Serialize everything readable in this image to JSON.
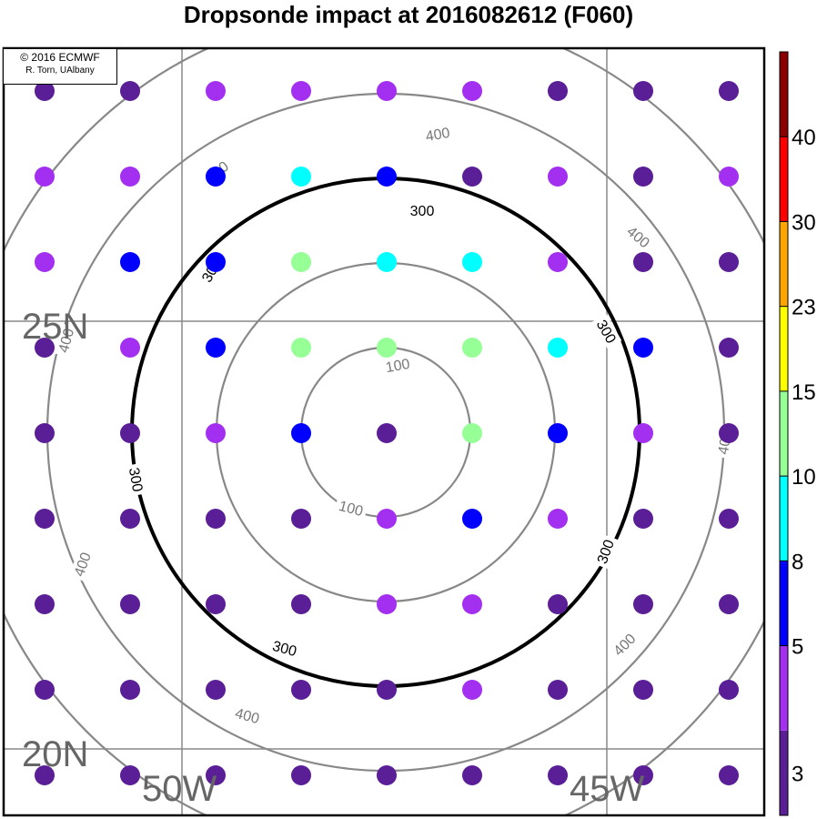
{
  "title": "Dropsonde impact at 2016082612 (F060)",
  "credit": {
    "line1": "© 2016 ECMWF",
    "line2": "R. Torn, UAlbany"
  },
  "chart_data": {
    "type": "scatter",
    "map_labels": {
      "lat": [
        "25N",
        "20N"
      ],
      "lon": [
        "50W",
        "45W"
      ]
    },
    "contours": [
      {
        "level": 100,
        "label": "100",
        "color": "#888888",
        "width": 2.2,
        "labels": [
          [
            437,
            401,
            -10
          ],
          [
            386,
            558,
            15
          ]
        ]
      },
      {
        "level": 200,
        "label": "",
        "color": "#888888",
        "width": 2.2,
        "labels": []
      },
      {
        "level": 300,
        "label": "300",
        "color": "#000000",
        "width": 4,
        "labels": [
          [
            464,
            231,
            0
          ],
          [
            232,
            297,
            -60
          ],
          [
            667,
            364,
            60
          ],
          [
            150,
            527,
            80
          ],
          [
            665,
            606,
            -70
          ],
          [
            313,
            712,
            15
          ]
        ]
      },
      {
        "level": 400,
        "label": "400",
        "color": "#888888",
        "width": 2.2,
        "labels": [
          [
            481,
            147,
            -10
          ],
          [
            238,
            188,
            -35
          ],
          [
            702,
            260,
            40
          ],
          [
            72,
            374,
            -75
          ],
          [
            796,
            486,
            -80
          ],
          [
            90,
            620,
            -70
          ],
          [
            686,
            708,
            -45
          ],
          [
            272,
            786,
            15
          ]
        ]
      },
      {
        "level": 500,
        "label": "",
        "color": "#888888",
        "width": 2.2,
        "labels": []
      }
    ],
    "colorbar": {
      "boundaries": [
        3,
        5,
        8,
        10,
        15,
        23,
        30,
        40
      ],
      "colors": [
        "#5a1e96",
        "#a32ff0",
        "#0000ff",
        "#00ffff",
        "#96ff96",
        "#ffff00",
        "#ffa500",
        "#ff0000",
        "#8b0000"
      ]
    },
    "impact_grid": [
      [
        0,
        1,
        1,
        1,
        1,
        0,
        0,
        0
      ],
      [
        1,
        1,
        2,
        3,
        2,
        1,
        0,
        1
      ],
      [
        1,
        2,
        2,
        4,
        3,
        3,
        1,
        0
      ],
      [
        0,
        1,
        2,
        4,
        4,
        4,
        3,
        2,
        0
      ],
      [
        0,
        0,
        1,
        2,
        0,
        4,
        2,
        1,
        0
      ],
      [
        0,
        0,
        0,
        0,
        1,
        2,
        1,
        0,
        0
      ],
      [
        0,
        0,
        0,
        0,
        1,
        1,
        0,
        0,
        0
      ],
      [
        0,
        0,
        0,
        0,
        0,
        1,
        0,
        0,
        0
      ],
      [
        0,
        0,
        0,
        0,
        0,
        0,
        0,
        0,
        0
      ]
    ]
  }
}
